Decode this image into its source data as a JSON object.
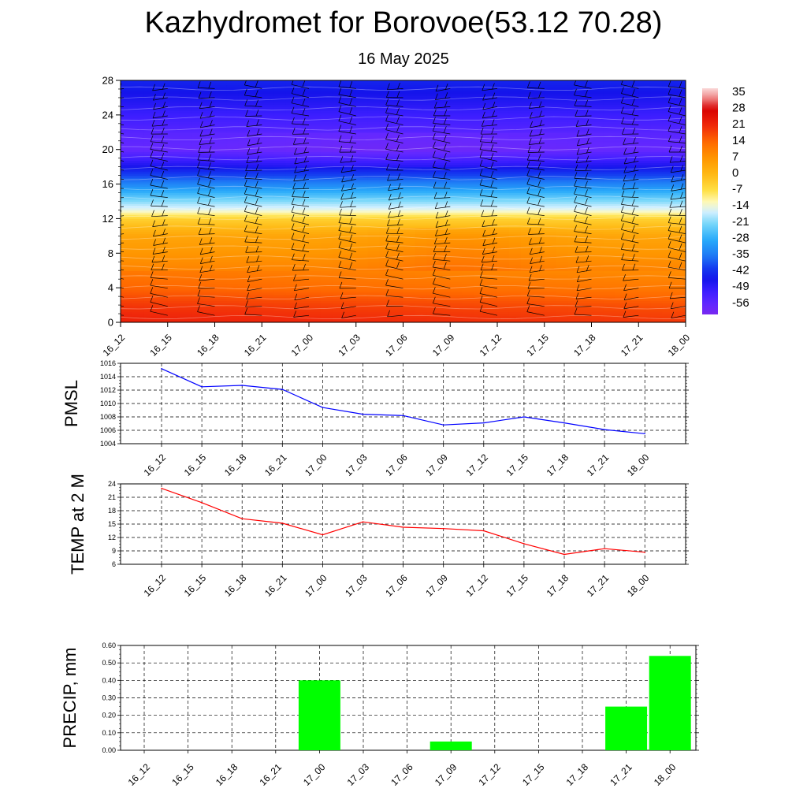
{
  "title": "Kazhydromet for Borovoe(53.12 70.28)",
  "subtitle": "16 May 2025",
  "time_labels": [
    "16_12",
    "16_15",
    "16_18",
    "16_21",
    "17_00",
    "17_03",
    "17_06",
    "17_09",
    "17_12",
    "17_15",
    "17_18",
    "17_21",
    "18_00"
  ],
  "colors": {
    "pmsl_line": "#0000ff",
    "temp_line": "#ff0000",
    "precip_bar": "#00ff00",
    "grid": "#000000"
  },
  "chart_data": [
    {
      "type": "heatmap",
      "title": "",
      "x": [
        "16_12",
        "16_15",
        "16_18",
        "16_21",
        "17_00",
        "17_03",
        "17_06",
        "17_09",
        "17_12",
        "17_15",
        "17_18",
        "17_21",
        "18_00"
      ],
      "ylim": [
        0,
        28
      ],
      "yticks": [
        0,
        4,
        8,
        12,
        16,
        20,
        24,
        28
      ],
      "colorbar": {
        "labels": [
          "35",
          "28",
          "21",
          "14",
          "7",
          "0",
          "-7",
          "-14",
          "-21",
          "-28",
          "-35",
          "-42",
          "-49",
          "-56"
        ],
        "range": [
          -60,
          37
        ]
      },
      "temperature_profile_by_height": [
        {
          "height": 0,
          "temp": 21
        },
        {
          "height": 2,
          "temp": 18
        },
        {
          "height": 4,
          "temp": 13
        },
        {
          "height": 6,
          "temp": 10
        },
        {
          "height": 8,
          "temp": 7
        },
        {
          "height": 10,
          "temp": 4
        },
        {
          "height": 12,
          "temp": -4
        },
        {
          "height": 13,
          "temp": -14
        },
        {
          "height": 14,
          "temp": -20
        },
        {
          "height": 16,
          "temp": -33
        },
        {
          "height": 18,
          "temp": -45
        },
        {
          "height": 20,
          "temp": -56
        },
        {
          "height": 22,
          "temp": -54
        },
        {
          "height": 24,
          "temp": -50
        },
        {
          "height": 26,
          "temp": -46
        },
        {
          "height": 28,
          "temp": -43
        }
      ],
      "wind_barbs": "present"
    },
    {
      "type": "line",
      "ylabel": "PMSL",
      "categories": [
        "16_12",
        "16_15",
        "16_18",
        "16_21",
        "17_00",
        "17_03",
        "17_06",
        "17_09",
        "17_12",
        "17_15",
        "17_18",
        "17_21",
        "18_00"
      ],
      "values": [
        1015.2,
        1012.5,
        1012.7,
        1012.1,
        1009.4,
        1008.4,
        1008.2,
        1006.8,
        1007.1,
        1008.0,
        1007.1,
        1006.1,
        1005.5
      ],
      "ylim": [
        1004,
        1016
      ],
      "yticks": [
        "1004",
        "1006",
        "1008",
        "1010",
        "1012",
        "1014",
        "1016"
      ],
      "grid": true
    },
    {
      "type": "line",
      "ylabel": "TEMP at 2 M",
      "categories": [
        "16_12",
        "16_15",
        "16_18",
        "16_21",
        "17_00",
        "17_03",
        "17_06",
        "17_09",
        "17_12",
        "17_15",
        "17_18",
        "17_21",
        "18_00"
      ],
      "values": [
        23.0,
        19.8,
        16.2,
        15.2,
        12.6,
        15.5,
        14.3,
        14.0,
        13.5,
        10.6,
        8.2,
        9.5,
        8.7
      ],
      "ylim": [
        6,
        24
      ],
      "yticks": [
        "6",
        "9",
        "12",
        "15",
        "18",
        "21",
        "24"
      ],
      "grid": true
    },
    {
      "type": "bar",
      "ylabel": "PRECIP, mm",
      "categories": [
        "16_12",
        "16_15",
        "16_18",
        "16_21",
        "17_00",
        "17_03",
        "17_06",
        "17_09",
        "17_12",
        "17_15",
        "17_18",
        "17_21",
        "18_00"
      ],
      "values": [
        0,
        0,
        0,
        0,
        0.4,
        0,
        0,
        0.05,
        0,
        0,
        0,
        0.25,
        0.54
      ],
      "ylim": [
        0,
        0.6
      ],
      "yticks": [
        "0.00",
        "0.10",
        "0.20",
        "0.30",
        "0.40",
        "0.50",
        "0.60"
      ],
      "grid": true
    }
  ]
}
